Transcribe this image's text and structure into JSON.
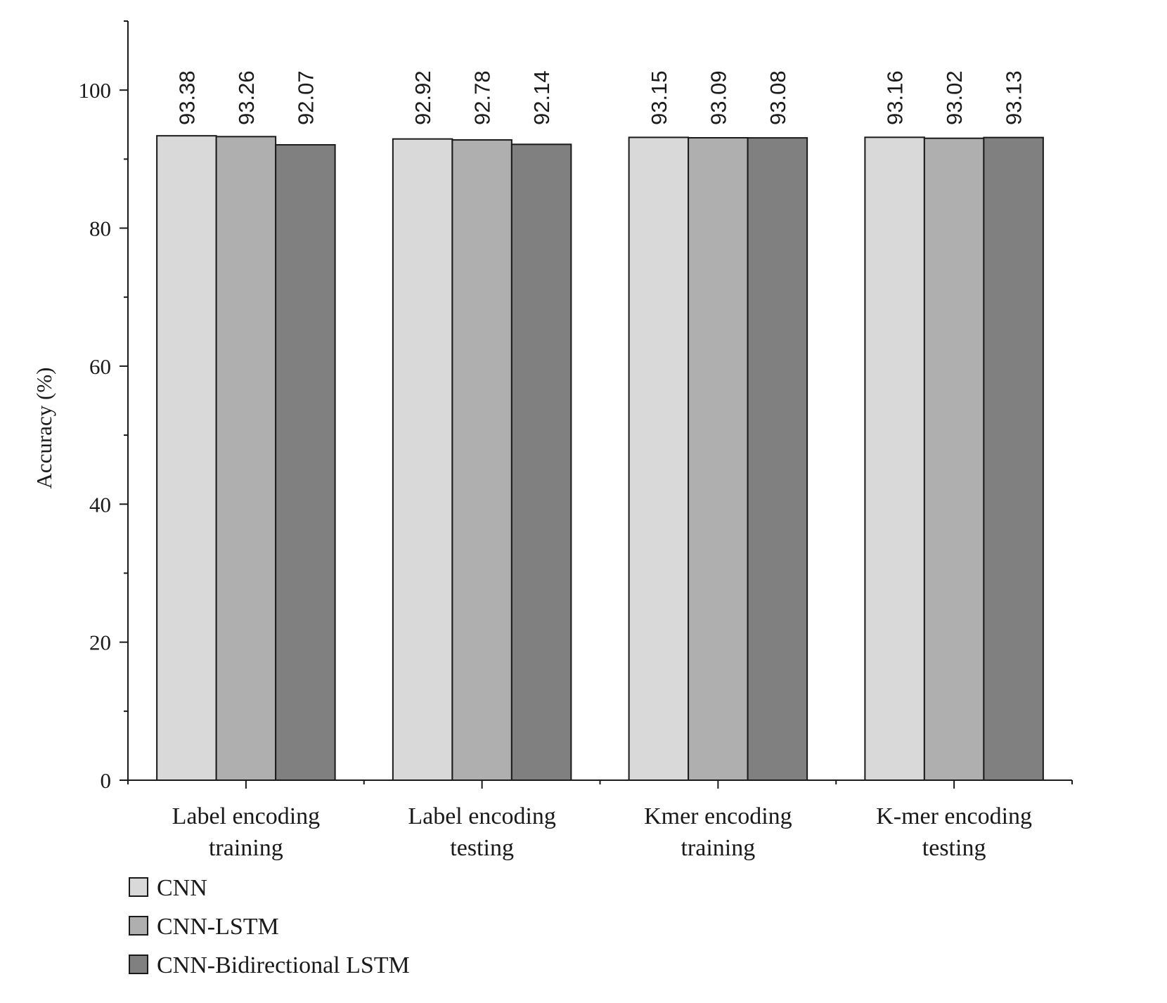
{
  "chart_data": {
    "type": "bar",
    "categories": [
      [
        "Label encoding",
        "training"
      ],
      [
        "Label encoding",
        "testing"
      ],
      [
        "Kmer encoding",
        "training"
      ],
      [
        "K-mer encoding",
        "testing"
      ]
    ],
    "series": [
      {
        "name": "CNN",
        "color": "#d9d9d9",
        "values": [
          93.38,
          92.92,
          93.15,
          93.16
        ]
      },
      {
        "name": "CNN-LSTM",
        "color": "#afafaf",
        "values": [
          93.26,
          92.78,
          93.09,
          93.02
        ]
      },
      {
        "name": "CNN-Bidirectional LSTM",
        "color": "#808080",
        "values": [
          92.07,
          92.14,
          93.08,
          93.13
        ]
      }
    ],
    "data_labels": [
      [
        "93.38",
        "93.26",
        "92.07"
      ],
      [
        "92.92",
        "92.78",
        "92.14"
      ],
      [
        "93.15",
        "93.09",
        "93.08"
      ],
      [
        "93.16",
        "93.02",
        "93.13"
      ]
    ],
    "ylabel": "Accuracy (%)",
    "xlabel": "",
    "title": "",
    "ylim": [
      0,
      110
    ],
    "yticks": [
      0,
      20,
      40,
      60,
      80,
      100
    ],
    "yticks_minor": [
      10,
      30,
      50,
      70,
      90,
      110
    ],
    "grid": false,
    "legend_position": "bottom-left"
  }
}
